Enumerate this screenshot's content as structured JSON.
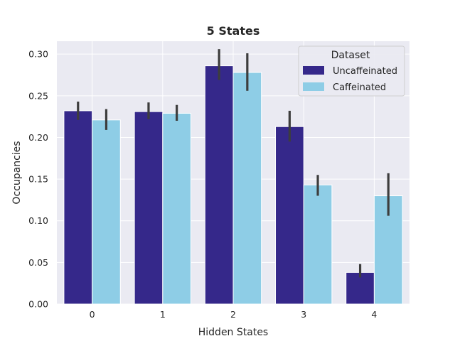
{
  "chart_data": {
    "type": "bar",
    "title": "5 States",
    "xlabel": "Hidden States",
    "ylabel": "Occupancies",
    "categories": [
      "0",
      "1",
      "2",
      "3",
      "4"
    ],
    "ylim": [
      0,
      0.3155
    ],
    "yticks": [
      0.0,
      0.05,
      0.1,
      0.15,
      0.2,
      0.25,
      0.3
    ],
    "ytick_labels": [
      "0.00",
      "0.05",
      "0.10",
      "0.15",
      "0.20",
      "0.25",
      "0.30"
    ],
    "grid": true,
    "legend": {
      "title": "Dataset",
      "placement": "top-right"
    },
    "series": [
      {
        "name": "Uncaffeinated",
        "color": "#35288a",
        "values": [
          0.232,
          0.231,
          0.286,
          0.213,
          0.038
        ],
        "error_low": [
          0.221,
          0.222,
          0.269,
          0.195,
          0.032
        ],
        "error_high": [
          0.243,
          0.242,
          0.306,
          0.232,
          0.048
        ]
      },
      {
        "name": "Caffeinated",
        "color": "#8ecde6",
        "values": [
          0.221,
          0.229,
          0.278,
          0.143,
          0.13
        ],
        "error_low": [
          0.209,
          0.22,
          0.256,
          0.13,
          0.106
        ],
        "error_high": [
          0.234,
          0.239,
          0.301,
          0.155,
          0.157
        ]
      }
    ]
  }
}
